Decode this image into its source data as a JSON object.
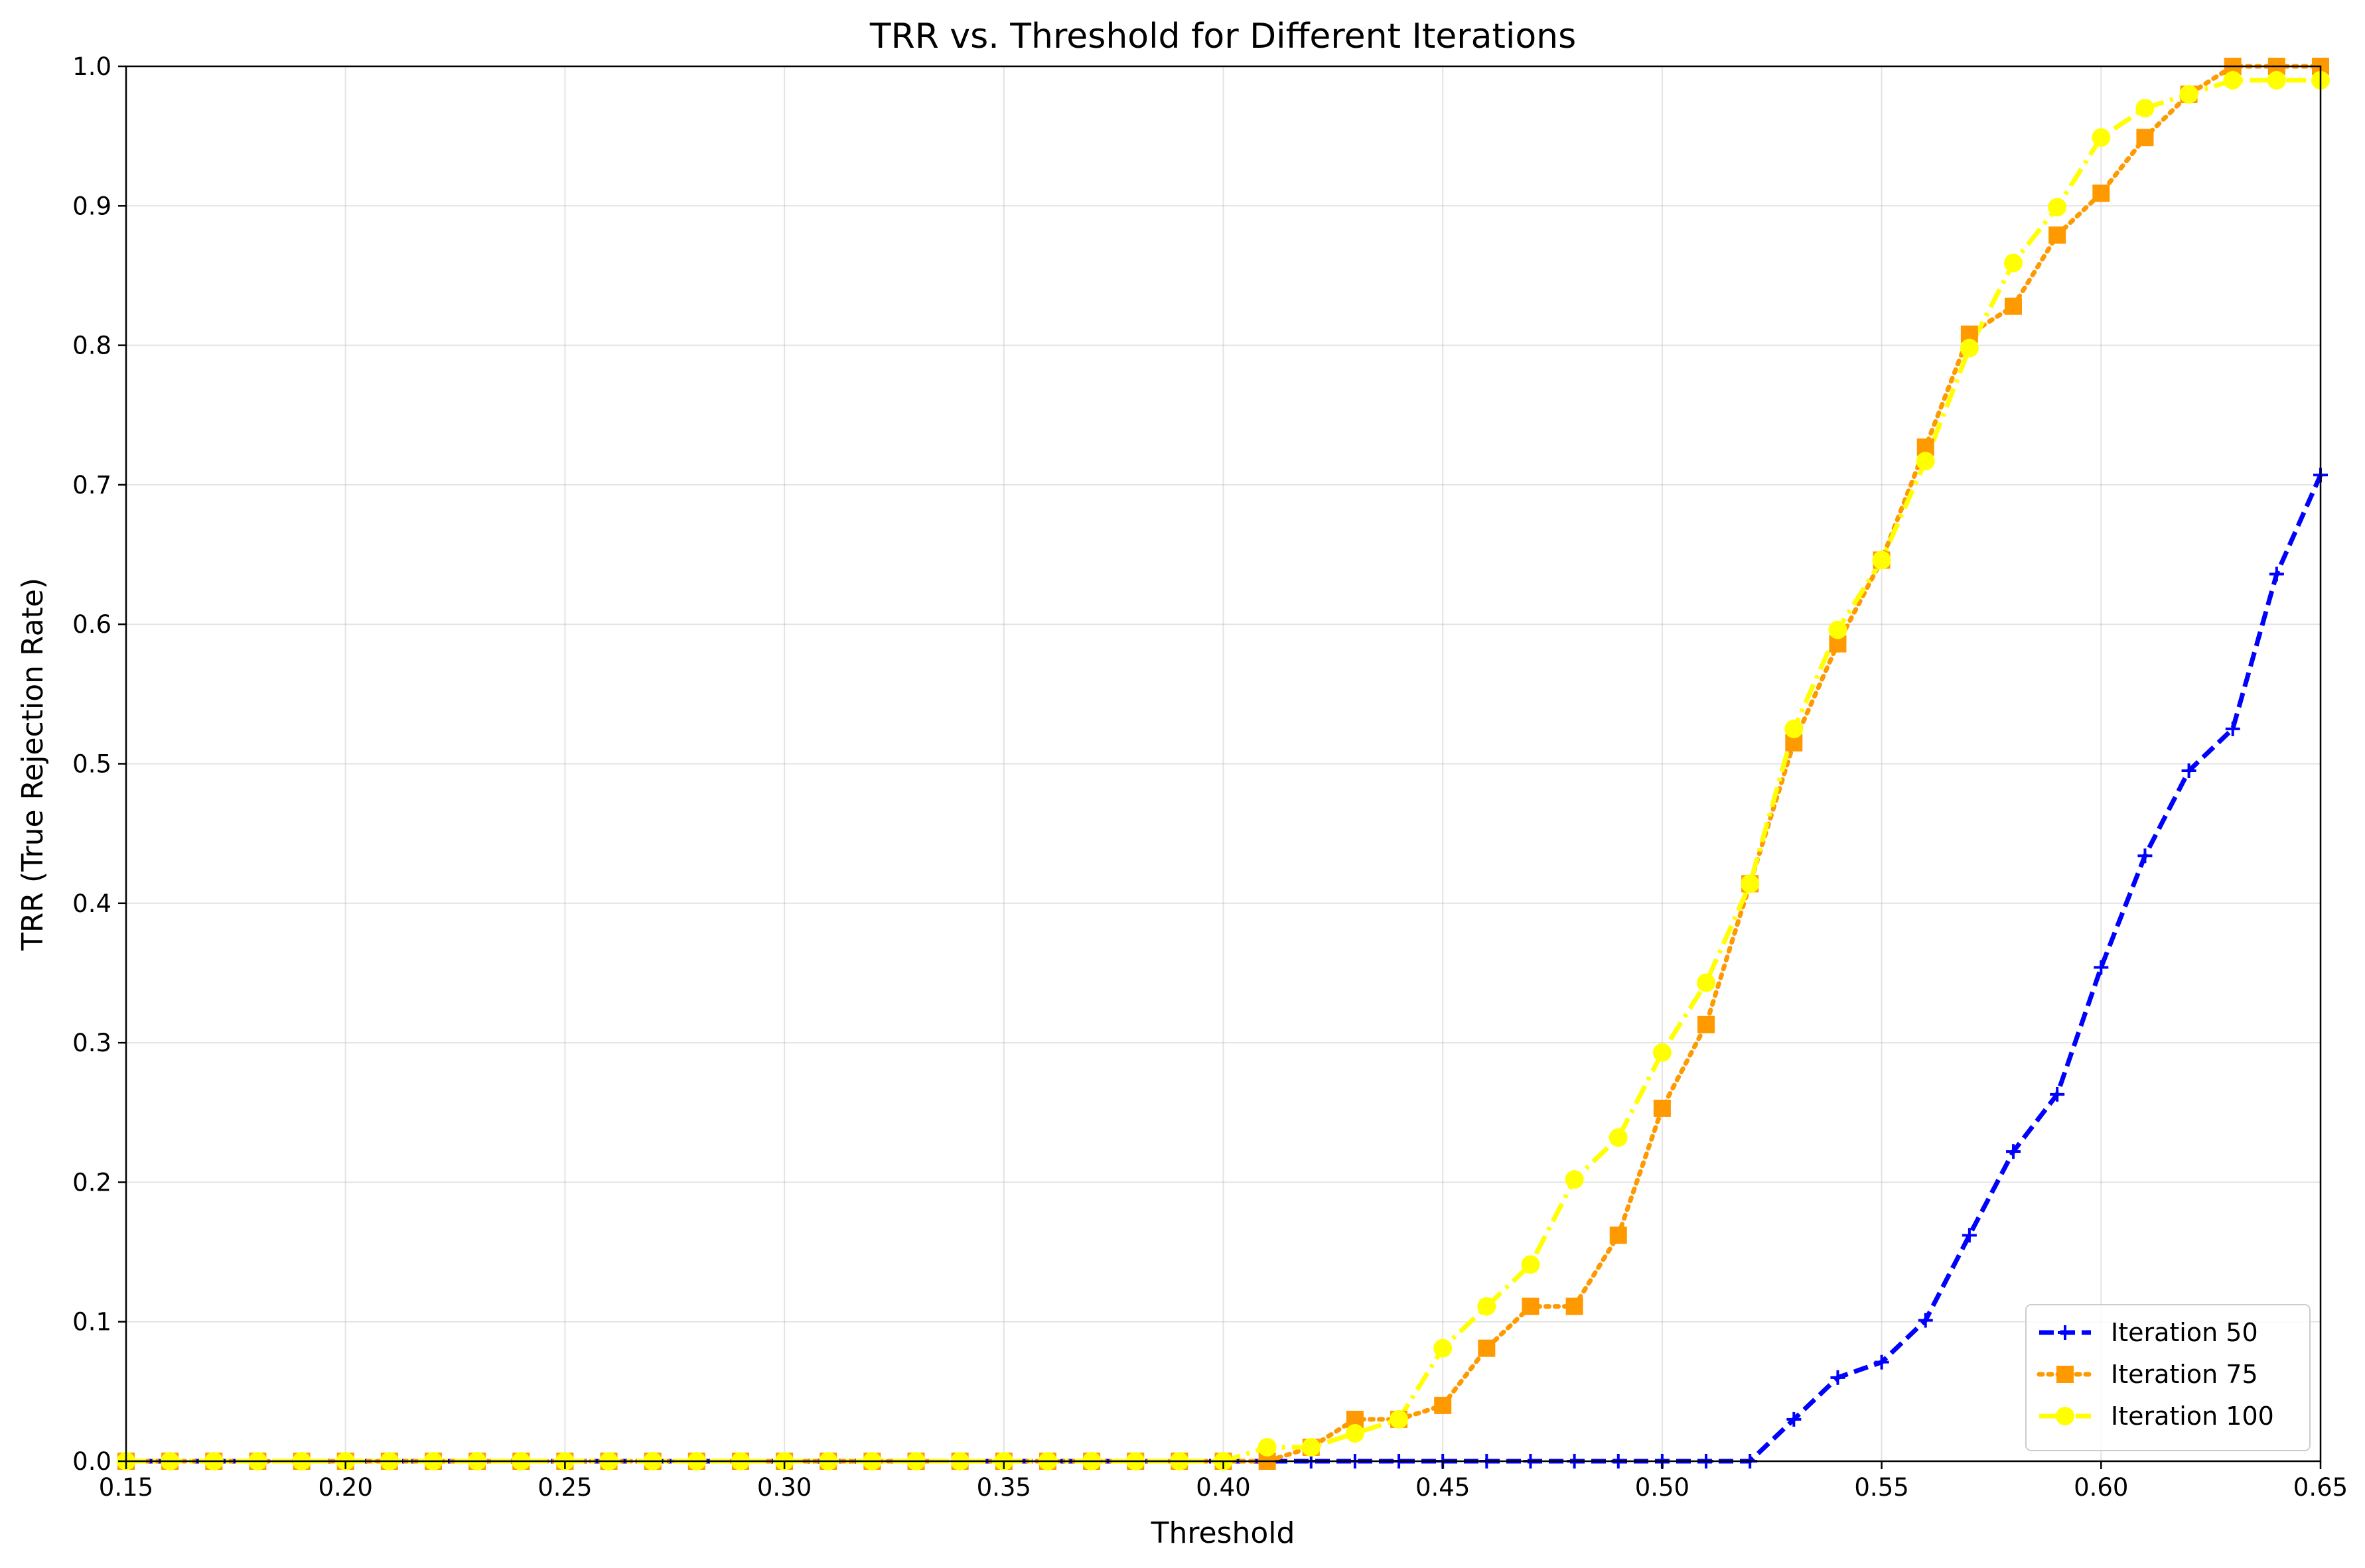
{
  "chart_data": {
    "type": "line",
    "title": "TRR vs. Threshold for Different Iterations",
    "xlabel": "Threshold",
    "ylabel": "TRR (True Rejection Rate)",
    "xlim": [
      0.15,
      0.65
    ],
    "ylim": [
      0.0,
      1.0
    ],
    "grid": true,
    "legend_position": "bottom-right",
    "xticks": [
      "0.15",
      "0.20",
      "0.25",
      "0.30",
      "0.35",
      "0.40",
      "0.45",
      "0.50",
      "0.55",
      "0.60",
      "0.65"
    ],
    "yticks": [
      "0.0",
      "0.1",
      "0.2",
      "0.3",
      "0.4",
      "0.5",
      "0.6",
      "0.7",
      "0.8",
      "0.9",
      "1.0"
    ],
    "x": [
      0.15,
      0.16,
      0.17,
      0.18,
      0.19,
      0.2,
      0.21,
      0.22,
      0.23,
      0.24,
      0.25,
      0.26,
      0.27,
      0.28,
      0.29,
      0.3,
      0.31,
      0.32,
      0.33,
      0.34,
      0.35,
      0.36,
      0.37,
      0.38,
      0.39,
      0.4,
      0.41,
      0.42,
      0.43,
      0.44,
      0.45,
      0.46,
      0.47,
      0.48,
      0.49,
      0.5,
      0.51,
      0.52,
      0.53,
      0.54,
      0.55,
      0.56,
      0.57,
      0.58,
      0.59,
      0.6,
      0.61,
      0.62,
      0.63,
      0.64,
      0.65
    ],
    "series": [
      {
        "name": "Iteration 50",
        "color": "#0000ff",
        "line_style": "dashed",
        "marker": "plus",
        "values": [
          0,
          0,
          0,
          0,
          0,
          0,
          0,
          0,
          0,
          0,
          0,
          0,
          0,
          0,
          0,
          0,
          0,
          0,
          0,
          0,
          0,
          0,
          0,
          0,
          0,
          0,
          0,
          0,
          0,
          0,
          0,
          0,
          0,
          0,
          0,
          0,
          0,
          0,
          0.03,
          0.06,
          0.071,
          0.101,
          0.162,
          0.222,
          0.263,
          0.354,
          0.434,
          0.495,
          0.525,
          0.636,
          0.707
        ]
      },
      {
        "name": "Iteration 75",
        "color": "#ff9900",
        "line_style": "dotted",
        "marker": "square",
        "values": [
          0,
          0,
          0,
          0,
          0,
          0,
          0,
          0,
          0,
          0,
          0,
          0,
          0,
          0,
          0,
          0,
          0,
          0,
          0,
          0,
          0,
          0,
          0,
          0,
          0,
          0,
          0,
          0.01,
          0.03,
          0.03,
          0.04,
          0.081,
          0.111,
          0.111,
          0.162,
          0.253,
          0.313,
          0.414,
          0.515,
          0.586,
          0.646,
          0.727,
          0.808,
          0.828,
          0.879,
          0.909,
          0.949,
          0.98,
          1.0,
          1.0,
          1.0
        ]
      },
      {
        "name": "Iteration 100",
        "color": "#ffff00",
        "line_style": "dashdot",
        "marker": "circle",
        "values": [
          0,
          0,
          0,
          0,
          0,
          0,
          0,
          0,
          0,
          0,
          0,
          0,
          0,
          0,
          0,
          0,
          0,
          0,
          0,
          0,
          0,
          0,
          0,
          0,
          0,
          0,
          0.01,
          0.01,
          0.02,
          0.03,
          0.081,
          0.111,
          0.141,
          0.202,
          0.232,
          0.293,
          0.343,
          0.414,
          0.525,
          0.596,
          0.646,
          0.717,
          0.798,
          0.859,
          0.899,
          0.949,
          0.97,
          0.98,
          0.99,
          0.99,
          0.99
        ]
      }
    ]
  }
}
